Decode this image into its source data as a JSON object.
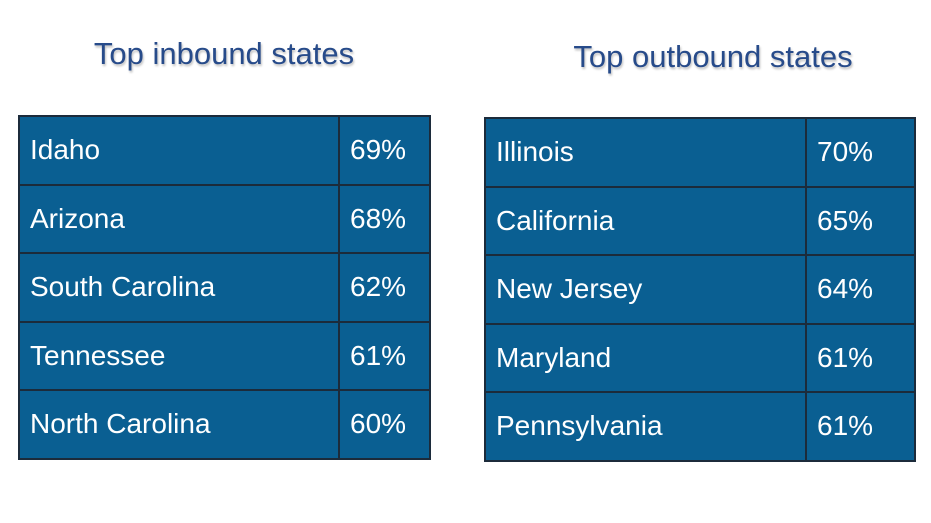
{
  "tables": [
    {
      "title": "Top inbound states",
      "rows": [
        [
          "Idaho",
          "69%"
        ],
        [
          "Arizona",
          "68%"
        ],
        [
          "South Carolina",
          "62%"
        ],
        [
          "Tennessee",
          "61%"
        ],
        [
          "North Carolina",
          "60%"
        ]
      ]
    },
    {
      "title": "Top outbound states",
      "rows": [
        [
          "Illinois",
          "70%"
        ],
        [
          "California",
          "65%"
        ],
        [
          "New Jersey",
          "64%"
        ],
        [
          "Maryland",
          "61%"
        ],
        [
          "Pennsylvania",
          "61%"
        ]
      ]
    }
  ]
}
